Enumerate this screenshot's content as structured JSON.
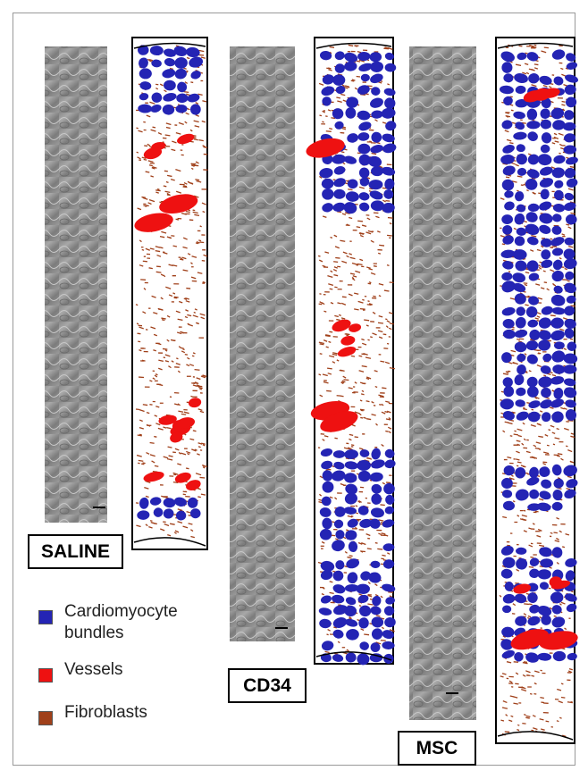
{
  "panels": [
    {
      "label": "SALINE"
    },
    {
      "label": "CD34"
    },
    {
      "label": "MSC"
    }
  ],
  "legend": [
    {
      "label": "Cardiomyocyte bundles",
      "color": "#2424b4"
    },
    {
      "label": "Vessels",
      "color": "#ee1111"
    },
    {
      "label": "Fibroblasts",
      "color": "#a0401a"
    }
  ]
}
